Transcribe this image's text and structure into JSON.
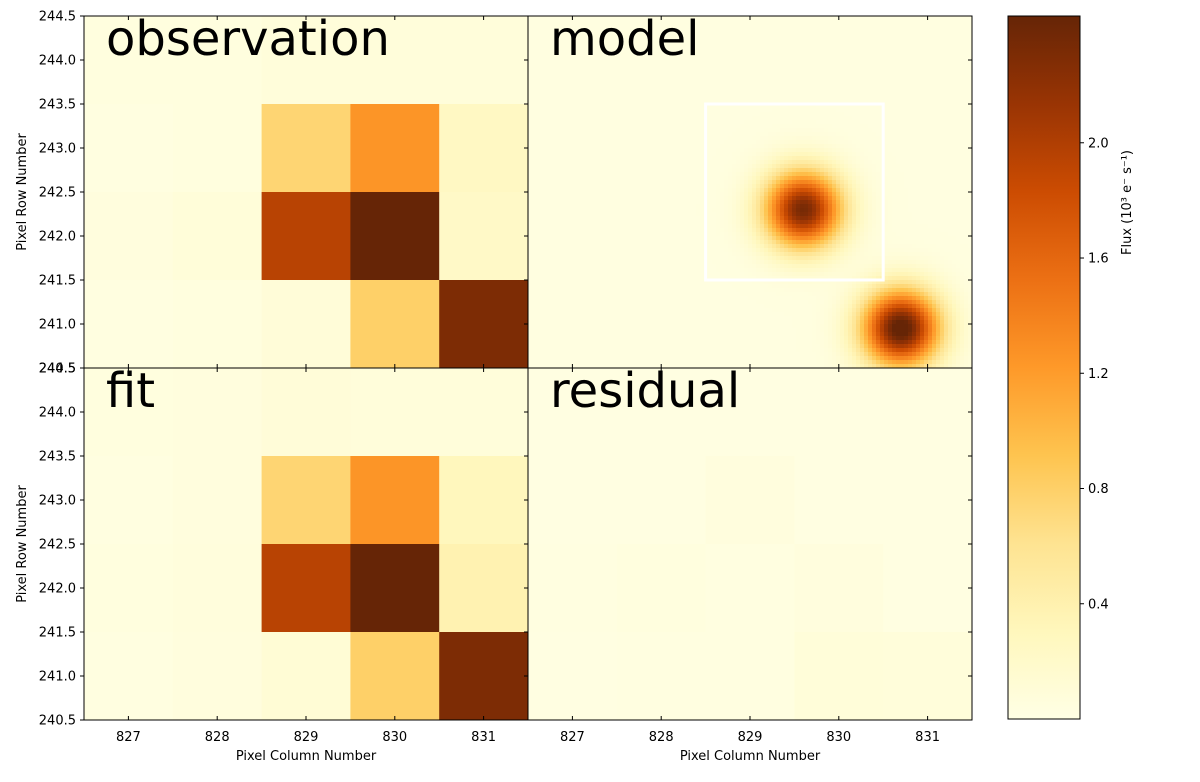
{
  "chart_data": {
    "type": "heatmap",
    "colorbar": {
      "label": "Flux (10³ e⁻ s⁻¹)",
      "range": [
        0.0,
        2.44
      ],
      "ticks": [
        "0.4",
        "0.8",
        "1.2",
        "1.6",
        "2.0"
      ],
      "tick_values": [
        0.4,
        0.8,
        1.2,
        1.6,
        2.0
      ],
      "colormap": [
        "#ffffe5",
        "#fff7bc",
        "#fee391",
        "#fec44f",
        "#fe9929",
        "#ec7014",
        "#cc4c02",
        "#993404",
        "#662506"
      ]
    },
    "x_axis": {
      "label": "Pixel Column Number",
      "ticks": [
        "827",
        "828",
        "829",
        "830",
        "831"
      ],
      "tick_values": [
        827,
        828,
        829,
        830,
        831
      ],
      "range": [
        826.5,
        831.5
      ]
    },
    "y_axis": {
      "label": "Pixel Row Number",
      "ticks": [
        "240.5",
        "241.0",
        "241.5",
        "242.0",
        "242.5",
        "243.0",
        "243.5",
        "244.0",
        "244.5"
      ],
      "tick_values": [
        240.5,
        241.0,
        241.5,
        242.0,
        242.5,
        243.0,
        243.5,
        244.0,
        244.5
      ],
      "range": [
        240.5,
        244.5
      ]
    },
    "panels": [
      {
        "title": "observation",
        "kind": "pixels",
        "columns": [
          827,
          828,
          829,
          830,
          831
        ],
        "rows": [
          244,
          243,
          242,
          241
        ],
        "values": [
          [
            0.05,
            0.05,
            0.08,
            0.08,
            0.08
          ],
          [
            0.04,
            0.05,
            0.75,
            1.25,
            0.25
          ],
          [
            0.06,
            0.09,
            1.95,
            2.44,
            0.22
          ],
          [
            0.04,
            0.05,
            0.1,
            0.8,
            2.3
          ]
        ]
      },
      {
        "title": "model",
        "kind": "smooth",
        "background": 0.04,
        "sources": [
          {
            "x": 829.6,
            "y": 242.3,
            "amplitude": 2.3,
            "sigma": 0.3
          },
          {
            "x": 830.7,
            "y": 240.95,
            "amplitude": 2.5,
            "sigma": 0.3
          }
        ],
        "aperture": {
          "x": [
            828.5,
            830.5
          ],
          "y": [
            241.5,
            243.5
          ]
        }
      },
      {
        "title": "fit",
        "kind": "pixels",
        "columns": [
          827,
          828,
          829,
          830,
          831
        ],
        "rows": [
          244,
          243,
          242,
          241
        ],
        "values": [
          [
            0.05,
            0.06,
            0.1,
            0.08,
            0.08
          ],
          [
            0.04,
            0.06,
            0.75,
            1.25,
            0.3
          ],
          [
            0.05,
            0.07,
            1.95,
            2.44,
            0.38
          ],
          [
            0.04,
            0.06,
            0.12,
            0.8,
            2.3
          ]
        ]
      },
      {
        "title": "residual",
        "kind": "pixels",
        "columns": [
          827,
          828,
          829,
          830,
          831
        ],
        "rows": [
          244,
          243,
          242,
          241
        ],
        "values": [
          [
            0.03,
            0.03,
            0.03,
            0.03,
            0.03
          ],
          [
            0.03,
            0.03,
            0.06,
            0.03,
            0.03
          ],
          [
            0.04,
            0.05,
            0.04,
            0.06,
            0.03
          ],
          [
            0.03,
            0.04,
            0.04,
            0.09,
            0.08
          ]
        ]
      }
    ]
  }
}
